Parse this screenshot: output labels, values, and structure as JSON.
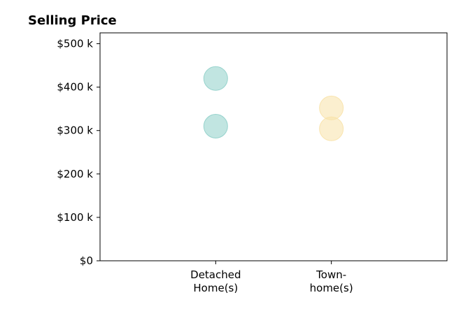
{
  "chart_data": {
    "type": "scatter",
    "title": "Selling Price",
    "xlabel": "",
    "ylabel": "",
    "categories": [
      "Detached\nHome(s)",
      "Town-\nhome(s)"
    ],
    "x_range": [
      0,
      3
    ],
    "y_range": [
      0,
      525000
    ],
    "y_ticks": [
      {
        "value": 0,
        "label": "$0"
      },
      {
        "value": 100000,
        "label": "$100 k"
      },
      {
        "value": 200000,
        "label": "$200 k"
      },
      {
        "value": 300000,
        "label": "$300 k"
      },
      {
        "value": 400000,
        "label": "$400 k"
      },
      {
        "value": 500000,
        "label": "$500 k"
      }
    ],
    "grid": false,
    "series": [
      {
        "category": "Detached\nHome(s)",
        "color": "#8ecfc9",
        "values": [
          420000,
          310000
        ]
      },
      {
        "category": "Town-\nhome(s)",
        "color": "#f8e2a8",
        "values": [
          352000,
          304000
        ]
      }
    ]
  }
}
